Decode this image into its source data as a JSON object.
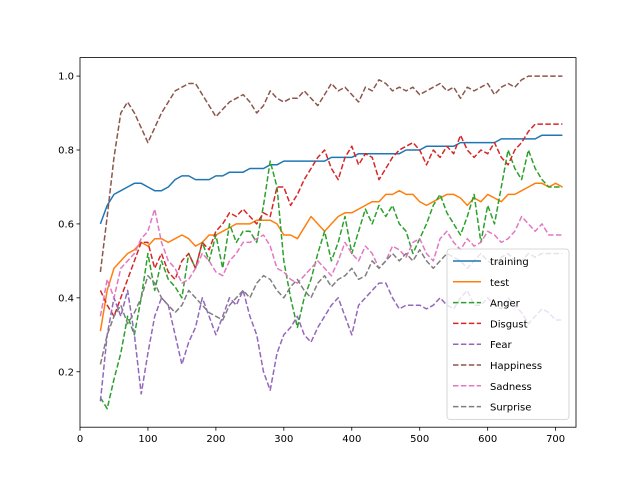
{
  "chart_data": {
    "type": "line",
    "title": "",
    "xlabel": "",
    "ylabel": "",
    "xlim": [
      0,
      730
    ],
    "ylim": [
      0.05,
      1.05
    ],
    "xticks": [
      0,
      100,
      200,
      300,
      400,
      500,
      600,
      700
    ],
    "yticks": [
      0.2,
      0.4,
      0.6,
      0.8,
      1.0
    ],
    "xtick_labels": [
      "0",
      "100",
      "200",
      "300",
      "400",
      "500",
      "600",
      "700"
    ],
    "ytick_labels": [
      "0.2",
      "0.4",
      "0.6",
      "0.8",
      "1.0"
    ],
    "grid": false,
    "legend_position": "lower-right",
    "series": [
      {
        "name": "training",
        "color": "#1f77b4",
        "style": "solid",
        "x": [
          30,
          40,
          50,
          60,
          70,
          80,
          90,
          100,
          110,
          120,
          130,
          140,
          150,
          160,
          170,
          180,
          190,
          200,
          210,
          220,
          230,
          240,
          250,
          260,
          270,
          280,
          290,
          300,
          310,
          320,
          330,
          340,
          350,
          360,
          370,
          380,
          390,
          400,
          410,
          420,
          430,
          440,
          450,
          460,
          470,
          480,
          490,
          500,
          510,
          520,
          530,
          540,
          550,
          560,
          570,
          580,
          590,
          600,
          610,
          620,
          630,
          640,
          650,
          660,
          670,
          680,
          690,
          700,
          710
        ],
        "y": [
          0.6,
          0.65,
          0.68,
          0.69,
          0.7,
          0.71,
          0.71,
          0.7,
          0.69,
          0.69,
          0.7,
          0.72,
          0.73,
          0.73,
          0.72,
          0.72,
          0.72,
          0.73,
          0.73,
          0.74,
          0.74,
          0.74,
          0.75,
          0.75,
          0.75,
          0.76,
          0.76,
          0.77,
          0.77,
          0.77,
          0.77,
          0.77,
          0.77,
          0.77,
          0.78,
          0.78,
          0.78,
          0.78,
          0.79,
          0.79,
          0.79,
          0.79,
          0.79,
          0.79,
          0.79,
          0.8,
          0.8,
          0.8,
          0.81,
          0.81,
          0.81,
          0.81,
          0.81,
          0.82,
          0.82,
          0.82,
          0.82,
          0.82,
          0.82,
          0.83,
          0.83,
          0.83,
          0.83,
          0.83,
          0.83,
          0.84,
          0.84,
          0.84,
          0.84
        ]
      },
      {
        "name": "test",
        "color": "#ff7f0e",
        "style": "solid",
        "x": [
          30,
          40,
          50,
          60,
          70,
          80,
          90,
          100,
          110,
          120,
          130,
          140,
          150,
          160,
          170,
          180,
          190,
          200,
          210,
          220,
          230,
          240,
          250,
          260,
          270,
          280,
          290,
          300,
          310,
          320,
          330,
          340,
          350,
          360,
          370,
          380,
          390,
          400,
          410,
          420,
          430,
          440,
          450,
          460,
          470,
          480,
          490,
          500,
          510,
          520,
          530,
          540,
          550,
          560,
          570,
          580,
          590,
          600,
          610,
          620,
          630,
          640,
          650,
          660,
          670,
          680,
          690,
          700,
          710
        ],
        "y": [
          0.31,
          0.42,
          0.48,
          0.5,
          0.52,
          0.53,
          0.55,
          0.54,
          0.56,
          0.56,
          0.55,
          0.56,
          0.57,
          0.56,
          0.54,
          0.55,
          0.57,
          0.57,
          0.58,
          0.59,
          0.6,
          0.6,
          0.6,
          0.61,
          0.61,
          0.61,
          0.6,
          0.57,
          0.57,
          0.56,
          0.59,
          0.62,
          0.6,
          0.58,
          0.6,
          0.62,
          0.63,
          0.63,
          0.64,
          0.65,
          0.66,
          0.66,
          0.68,
          0.68,
          0.69,
          0.68,
          0.68,
          0.66,
          0.65,
          0.66,
          0.67,
          0.68,
          0.68,
          0.67,
          0.65,
          0.67,
          0.66,
          0.68,
          0.67,
          0.66,
          0.68,
          0.68,
          0.69,
          0.7,
          0.71,
          0.71,
          0.7,
          0.71,
          0.7
        ]
      },
      {
        "name": "Anger",
        "color": "#2ca02c",
        "style": "dashed",
        "x": [
          30,
          40,
          50,
          60,
          70,
          80,
          90,
          100,
          110,
          120,
          130,
          140,
          150,
          160,
          170,
          180,
          190,
          200,
          210,
          220,
          230,
          240,
          250,
          260,
          270,
          280,
          290,
          300,
          310,
          320,
          330,
          340,
          350,
          360,
          370,
          380,
          390,
          400,
          410,
          420,
          430,
          440,
          450,
          460,
          470,
          480,
          490,
          500,
          510,
          520,
          530,
          540,
          550,
          560,
          570,
          580,
          590,
          600,
          610,
          620,
          630,
          640,
          650,
          660,
          670,
          680,
          690,
          700,
          710
        ],
        "y": [
          0.13,
          0.1,
          0.18,
          0.25,
          0.35,
          0.3,
          0.4,
          0.52,
          0.42,
          0.5,
          0.45,
          0.43,
          0.4,
          0.52,
          0.48,
          0.55,
          0.5,
          0.57,
          0.48,
          0.6,
          0.55,
          0.58,
          0.58,
          0.55,
          0.65,
          0.77,
          0.7,
          0.5,
          0.4,
          0.32,
          0.4,
          0.45,
          0.52,
          0.58,
          0.5,
          0.55,
          0.62,
          0.52,
          0.58,
          0.64,
          0.6,
          0.65,
          0.62,
          0.65,
          0.6,
          0.58,
          0.52,
          0.56,
          0.6,
          0.65,
          0.68,
          0.63,
          0.6,
          0.57,
          0.62,
          0.68,
          0.55,
          0.65,
          0.6,
          0.7,
          0.8,
          0.75,
          0.72,
          0.8,
          0.75,
          0.72,
          0.7,
          0.7,
          0.7
        ]
      },
      {
        "name": "Disgust",
        "color": "#d62728",
        "style": "dashed",
        "x": [
          30,
          40,
          50,
          60,
          70,
          80,
          90,
          100,
          110,
          120,
          130,
          140,
          150,
          160,
          170,
          180,
          190,
          200,
          210,
          220,
          230,
          240,
          250,
          260,
          270,
          280,
          290,
          300,
          310,
          320,
          330,
          340,
          350,
          360,
          370,
          380,
          390,
          400,
          410,
          420,
          430,
          440,
          450,
          460,
          470,
          480,
          490,
          500,
          510,
          520,
          530,
          540,
          550,
          560,
          570,
          580,
          590,
          600,
          610,
          620,
          630,
          640,
          650,
          660,
          670,
          680,
          690,
          700,
          710
        ],
        "y": [
          0.42,
          0.38,
          0.35,
          0.4,
          0.45,
          0.5,
          0.55,
          0.55,
          0.48,
          0.52,
          0.47,
          0.45,
          0.5,
          0.52,
          0.48,
          0.55,
          0.53,
          0.58,
          0.6,
          0.63,
          0.62,
          0.64,
          0.62,
          0.6,
          0.63,
          0.62,
          0.7,
          0.7,
          0.65,
          0.68,
          0.72,
          0.75,
          0.78,
          0.8,
          0.75,
          0.72,
          0.78,
          0.81,
          0.76,
          0.79,
          0.78,
          0.72,
          0.75,
          0.78,
          0.8,
          0.81,
          0.82,
          0.8,
          0.76,
          0.8,
          0.78,
          0.81,
          0.79,
          0.84,
          0.8,
          0.78,
          0.8,
          0.79,
          0.82,
          0.78,
          0.76,
          0.8,
          0.82,
          0.85,
          0.87,
          0.87,
          0.87,
          0.87,
          0.87
        ]
      },
      {
        "name": "Fear",
        "color": "#9467bd",
        "style": "dashed",
        "x": [
          30,
          40,
          50,
          60,
          70,
          80,
          90,
          100,
          110,
          120,
          130,
          140,
          150,
          160,
          170,
          180,
          190,
          200,
          210,
          220,
          230,
          240,
          250,
          260,
          270,
          280,
          290,
          300,
          310,
          320,
          330,
          340,
          350,
          360,
          370,
          380,
          390,
          400,
          410,
          420,
          430,
          440,
          450,
          460,
          470,
          480,
          490,
          500,
          510,
          520,
          530,
          540,
          550,
          560,
          570,
          580,
          590,
          600,
          610,
          620,
          630,
          640,
          650,
          660,
          670,
          680,
          690,
          700,
          710
        ],
        "y": [
          0.12,
          0.3,
          0.4,
          0.35,
          0.42,
          0.3,
          0.14,
          0.25,
          0.35,
          0.4,
          0.38,
          0.3,
          0.22,
          0.28,
          0.32,
          0.4,
          0.35,
          0.3,
          0.35,
          0.4,
          0.38,
          0.42,
          0.35,
          0.3,
          0.2,
          0.15,
          0.25,
          0.3,
          0.32,
          0.35,
          0.3,
          0.28,
          0.32,
          0.35,
          0.38,
          0.4,
          0.35,
          0.3,
          0.38,
          0.4,
          0.42,
          0.44,
          0.44,
          0.4,
          0.37,
          0.38,
          0.38,
          0.38,
          0.37,
          0.38,
          0.4,
          0.38,
          0.37,
          0.4,
          0.42,
          0.38,
          0.38,
          0.4,
          0.38,
          0.37,
          0.4,
          0.38,
          0.36,
          0.33,
          0.35,
          0.37,
          0.36,
          0.34,
          0.34
        ]
      },
      {
        "name": "Happiness",
        "color": "#8c564b",
        "style": "dashed",
        "x": [
          30,
          40,
          50,
          60,
          70,
          80,
          90,
          100,
          110,
          120,
          130,
          140,
          150,
          160,
          170,
          180,
          190,
          200,
          210,
          220,
          230,
          240,
          250,
          260,
          270,
          280,
          290,
          300,
          310,
          320,
          330,
          340,
          350,
          360,
          370,
          380,
          390,
          400,
          410,
          420,
          430,
          440,
          450,
          460,
          470,
          480,
          490,
          500,
          510,
          520,
          530,
          540,
          550,
          560,
          570,
          580,
          590,
          600,
          610,
          620,
          630,
          640,
          650,
          660,
          670,
          680,
          690,
          700,
          710
        ],
        "y": [
          0.47,
          0.62,
          0.78,
          0.9,
          0.93,
          0.9,
          0.86,
          0.82,
          0.86,
          0.9,
          0.93,
          0.96,
          0.97,
          0.98,
          0.98,
          0.95,
          0.92,
          0.89,
          0.91,
          0.93,
          0.94,
          0.95,
          0.93,
          0.9,
          0.92,
          0.96,
          0.94,
          0.93,
          0.94,
          0.94,
          0.96,
          0.94,
          0.92,
          0.95,
          0.98,
          0.96,
          0.97,
          0.95,
          0.93,
          0.97,
          0.96,
          0.99,
          0.98,
          0.96,
          0.97,
          0.96,
          0.97,
          0.95,
          0.96,
          0.97,
          0.98,
          0.96,
          0.97,
          0.94,
          0.97,
          0.96,
          0.97,
          0.98,
          0.95,
          0.97,
          0.98,
          0.97,
          0.99,
          1.0,
          1.0,
          1.0,
          1.0,
          1.0,
          1.0
        ]
      },
      {
        "name": "Sadness",
        "color": "#e377c2",
        "style": "dashed",
        "x": [
          30,
          40,
          50,
          60,
          70,
          80,
          90,
          100,
          110,
          120,
          130,
          140,
          150,
          160,
          170,
          180,
          190,
          200,
          210,
          220,
          230,
          240,
          250,
          260,
          270,
          280,
          290,
          300,
          310,
          320,
          330,
          340,
          350,
          360,
          370,
          380,
          390,
          400,
          410,
          420,
          430,
          440,
          450,
          460,
          470,
          480,
          490,
          500,
          510,
          520,
          530,
          540,
          550,
          560,
          570,
          580,
          590,
          600,
          610,
          620,
          630,
          640,
          650,
          660,
          670,
          680,
          690,
          700,
          710
        ],
        "y": [
          0.35,
          0.45,
          0.4,
          0.48,
          0.5,
          0.52,
          0.56,
          0.58,
          0.64,
          0.55,
          0.5,
          0.48,
          0.44,
          0.45,
          0.48,
          0.52,
          0.5,
          0.47,
          0.46,
          0.5,
          0.52,
          0.55,
          0.55,
          0.56,
          0.57,
          0.54,
          0.48,
          0.47,
          0.45,
          0.44,
          0.46,
          0.48,
          0.5,
          0.48,
          0.46,
          0.5,
          0.55,
          0.52,
          0.5,
          0.54,
          0.52,
          0.48,
          0.5,
          0.54,
          0.53,
          0.51,
          0.55,
          0.56,
          0.52,
          0.5,
          0.56,
          0.58,
          0.55,
          0.53,
          0.56,
          0.54,
          0.55,
          0.58,
          0.57,
          0.55,
          0.56,
          0.58,
          0.62,
          0.6,
          0.58,
          0.6,
          0.57,
          0.57,
          0.57
        ]
      },
      {
        "name": "Surprise",
        "color": "#7f7f7f",
        "style": "dashed",
        "x": [
          30,
          40,
          50,
          60,
          70,
          80,
          90,
          100,
          110,
          120,
          130,
          140,
          150,
          160,
          170,
          180,
          190,
          200,
          210,
          220,
          230,
          240,
          250,
          260,
          270,
          280,
          290,
          300,
          310,
          320,
          330,
          340,
          350,
          360,
          370,
          380,
          390,
          400,
          410,
          420,
          430,
          440,
          450,
          460,
          470,
          480,
          490,
          500,
          510,
          520,
          530,
          540,
          550,
          560,
          570,
          580,
          590,
          600,
          610,
          620,
          630,
          640,
          650,
          660,
          670,
          680,
          690,
          700,
          710
        ],
        "y": [
          0.22,
          0.3,
          0.35,
          0.38,
          0.33,
          0.36,
          0.4,
          0.46,
          0.44,
          0.4,
          0.38,
          0.36,
          0.38,
          0.42,
          0.4,
          0.38,
          0.36,
          0.35,
          0.34,
          0.38,
          0.4,
          0.42,
          0.4,
          0.44,
          0.46,
          0.45,
          0.42,
          0.4,
          0.43,
          0.45,
          0.42,
          0.4,
          0.44,
          0.46,
          0.43,
          0.45,
          0.46,
          0.48,
          0.45,
          0.46,
          0.5,
          0.48,
          0.5,
          0.52,
          0.5,
          0.52,
          0.5,
          0.53,
          0.5,
          0.48,
          0.5,
          0.52,
          0.51,
          0.5,
          0.48,
          0.5,
          0.52,
          0.5,
          0.49,
          0.51,
          0.52,
          0.5,
          0.5,
          0.52,
          0.51,
          0.52,
          0.52,
          0.52,
          0.52
        ]
      }
    ]
  }
}
